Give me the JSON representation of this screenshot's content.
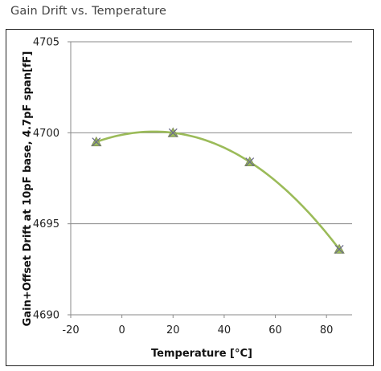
{
  "chart_data": {
    "type": "scatter",
    "title": "Gain Drift vs. Temperature",
    "xlabel": "Temperature [°C]",
    "ylabel": "Gain+Offset Drift at 10pF base, 4.7pF span[fF]",
    "xlim": [
      -20,
      90
    ],
    "ylim": [
      4690,
      4705
    ],
    "x_ticks": [
      -20,
      0,
      20,
      40,
      60,
      80
    ],
    "y_ticks": [
      4690,
      4695,
      4700,
      4705
    ],
    "grid": "horizontal",
    "legend": "none",
    "series": [
      {
        "x": [
          -10,
          20,
          50,
          85
        ],
        "y": [
          4699.5,
          4700.0,
          4698.4,
          4693.6
        ],
        "marker": "x-triangle",
        "trendline": "polynomial",
        "color": "#9bbb59",
        "marker_color": "#7f8c5a"
      }
    ]
  }
}
